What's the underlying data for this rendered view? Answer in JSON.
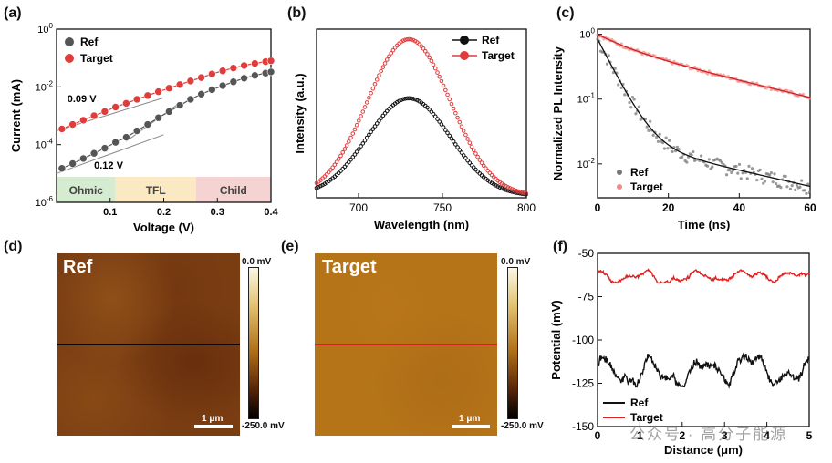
{
  "chart_data": [
    {
      "panel": "(a)",
      "type": "scatter",
      "xlabel": "Voltage (V)",
      "ylabel": "Current (mA)",
      "xlim": [
        0.0,
        0.4
      ],
      "ylim_log": [
        1e-06,
        1
      ],
      "yscale": "log",
      "xticks": [
        "0.1",
        "0.2",
        "0.3",
        "0.4"
      ],
      "yticks": [
        "10^-6",
        "10^-4",
        "10^-2",
        "10^0"
      ],
      "series": [
        {
          "name": "Ref",
          "color": "#555555",
          "x": [
            0.01,
            0.03,
            0.05,
            0.07,
            0.09,
            0.11,
            0.13,
            0.15,
            0.17,
            0.19,
            0.21,
            0.23,
            0.25,
            0.27,
            0.29,
            0.31,
            0.33,
            0.35,
            0.37,
            0.39,
            0.4
          ],
          "y": [
            1.5e-05,
            2.2e-05,
            3.3e-05,
            5e-05,
            7.5e-05,
            0.00012,
            0.00018,
            0.0003,
            0.0005,
            0.00085,
            0.0014,
            0.0023,
            0.0037,
            0.0056,
            0.008,
            0.011,
            0.015,
            0.02,
            0.025,
            0.03,
            0.033
          ]
        },
        {
          "name": "Target",
          "color": "#e03c3c",
          "x": [
            0.01,
            0.03,
            0.05,
            0.07,
            0.09,
            0.11,
            0.13,
            0.15,
            0.17,
            0.19,
            0.21,
            0.23,
            0.25,
            0.27,
            0.29,
            0.31,
            0.33,
            0.35,
            0.37,
            0.39,
            0.4
          ],
          "y": [
            0.00035,
            0.0005,
            0.0007,
            0.001,
            0.0014,
            0.002,
            0.0027,
            0.0037,
            0.005,
            0.0068,
            0.009,
            0.012,
            0.016,
            0.021,
            0.028,
            0.036,
            0.045,
            0.055,
            0.065,
            0.075,
            0.08
          ]
        }
      ],
      "annotations": [
        "0.09 V",
        "0.12 V"
      ],
      "regions": [
        {
          "label": "Ohmic",
          "from": 0.0,
          "to": 0.11,
          "color": "#d5ecd0"
        },
        {
          "label": "TFL",
          "from": 0.11,
          "to": 0.26,
          "color": "#fbe9c4"
        },
        {
          "label": "Child",
          "from": 0.26,
          "to": 0.4,
          "color": "#f6d3d3"
        }
      ],
      "legend": "top-left"
    },
    {
      "panel": "(b)",
      "type": "line",
      "xlabel": "Wavelength (nm)",
      "ylabel": "Intensity (a.u.)",
      "xlim": [
        675,
        800
      ],
      "xticks": [
        "700",
        "750",
        "800"
      ],
      "series": [
        {
          "name": "Ref",
          "color": "#111111",
          "peak_nm": 730,
          "peak_intensity": 0.58,
          "fwhm_nm": 58
        },
        {
          "name": "Target",
          "color": "#e03c3c",
          "peak_nm": 730,
          "peak_intensity": 0.93,
          "fwhm_nm": 58
        }
      ],
      "legend": "top-right"
    },
    {
      "panel": "(c)",
      "type": "scatter",
      "xlabel": "Time (ns)",
      "ylabel": "Normalized PL Intensity",
      "xlim": [
        0,
        60
      ],
      "ylim_log": [
        0.003,
        1.2
      ],
      "yscale": "log",
      "xticks": [
        "0",
        "20",
        "40",
        "60"
      ],
      "yticks": [
        "10^-2",
        "10^-1",
        "10^0"
      ],
      "series": [
        {
          "name": "Ref",
          "color": "#777777",
          "model": "biexponential",
          "a1": 0.82,
          "tau1_ns": 4.0,
          "a2": 0.025,
          "tau2_ns": 35
        },
        {
          "name": "Target",
          "color": "#f08a8a",
          "model": "biexponential",
          "a1": 0.35,
          "tau1_ns": 8,
          "a2": 0.65,
          "tau2_ns": 33
        }
      ],
      "legend": "bottom-left"
    },
    {
      "panel": "(f)",
      "type": "line",
      "xlabel": "Distance (μm)",
      "ylabel": "Potential (mV)",
      "xlim": [
        0,
        5
      ],
      "ylim": [
        -150,
        -50
      ],
      "xticks": [
        "0",
        "1",
        "2",
        "3",
        "4",
        "5"
      ],
      "yticks": [
        "-150",
        "-125",
        "-100",
        "-75",
        "-50"
      ],
      "series": [
        {
          "name": "Ref",
          "color": "#111111",
          "mean_mV": -118,
          "range_mV": [
            -127,
            -108
          ]
        },
        {
          "name": "Target",
          "color": "#e02020",
          "mean_mV": -63,
          "range_mV": [
            -67,
            -59
          ]
        }
      ],
      "legend": "bottom-left"
    }
  ],
  "panels": {
    "a": {
      "label": "(a)",
      "legend": [
        "Ref",
        "Target"
      ],
      "ann1": "0.09 V",
      "ann2": "0.12 V",
      "regions": [
        "Ohmic",
        "TFL",
        "Child"
      ],
      "xlabel": "Voltage (V)",
      "ylabel": "Current (mA)"
    },
    "b": {
      "label": "(b)",
      "legend": [
        "Ref",
        "Target"
      ],
      "xlabel": "Wavelength (nm)",
      "ylabel": "Intensity (a.u.)"
    },
    "c": {
      "label": "(c)",
      "legend": [
        "Ref",
        "Target"
      ],
      "xlabel": "Time (ns)",
      "ylabel": "Normalized PL Intensity"
    },
    "d": {
      "label": "(d)",
      "title": "Ref",
      "scale": "1 μm",
      "cb_top": "0.0 mV",
      "cb_bottom": "-250.0 mV",
      "line_color": "#000000"
    },
    "e": {
      "label": "(e)",
      "title": "Target",
      "scale": "1 μm",
      "cb_top": "0.0 mV",
      "cb_bottom": "-250.0 mV",
      "line_color": "#e02020"
    },
    "f": {
      "label": "(f)",
      "legend": [
        "Ref",
        "Target"
      ],
      "xlabel": "Distance (μm)",
      "ylabel": "Potential (mV)"
    }
  },
  "watermark": "公众号 · 高分子能源"
}
